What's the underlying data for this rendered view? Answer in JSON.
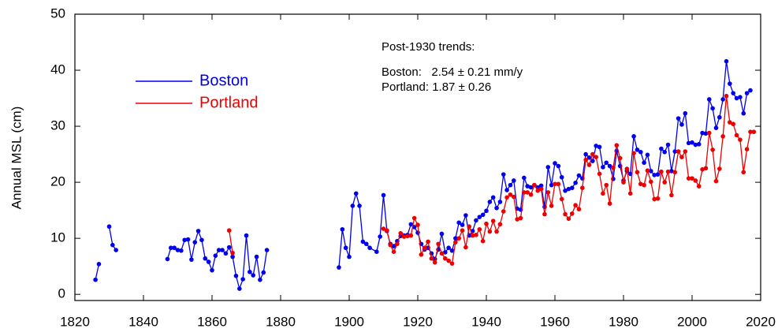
{
  "chart_data": {
    "type": "line",
    "ylabel": "Annual MSL (cm)",
    "annotations": [
      "Post-1930 trends:",
      "Boston:   2.54 ± 0.21 mm/y",
      "Portland: 1.87 ± 0.26"
    ],
    "xlim": [
      1820,
      2020
    ],
    "xticks": [
      1820,
      1840,
      1860,
      1880,
      1900,
      1920,
      1940,
      1960,
      1980,
      2000,
      2020
    ],
    "ylim": [
      -1.1,
      50
    ],
    "yticks": [
      0,
      10,
      20,
      30,
      40,
      50
    ],
    "legend": "upper left",
    "series": [
      {
        "name": "Boston",
        "color": "#0000ee",
        "x": [
          1826,
          1827,
          1828,
          1830,
          1831,
          1832,
          1833,
          1847,
          1848,
          1849,
          1850,
          1851,
          1852,
          1853,
          1854,
          1855,
          1856,
          1857,
          1858,
          1859,
          1860,
          1861,
          1862,
          1863,
          1864,
          1865,
          1866,
          1867,
          1868,
          1869,
          1870,
          1871,
          1872,
          1873,
          1874,
          1875,
          1876,
          1877,
          1897,
          1898,
          1899,
          1900,
          1901,
          1902,
          1903,
          1904,
          1905,
          1906,
          1908,
          1909,
          1910,
          1911,
          1912,
          1913,
          1914,
          1915,
          1916,
          1917,
          1918,
          1919,
          1920,
          1921,
          1922,
          1923,
          1924,
          1925,
          1926,
          1927,
          1928,
          1929,
          1930,
          1931,
          1932,
          1933,
          1934,
          1935,
          1936,
          1937,
          1938,
          1939,
          1940,
          1941,
          1942,
          1943,
          1944,
          1945,
          1946,
          1947,
          1948,
          1949,
          1950,
          1951,
          1952,
          1953,
          1954,
          1955,
          1956,
          1957,
          1958,
          1959,
          1960,
          1961,
          1962,
          1963,
          1964,
          1965,
          1966,
          1967,
          1968,
          1969,
          1970,
          1971,
          1972,
          1973,
          1974,
          1975,
          1976,
          1977,
          1978,
          1979,
          1980,
          1981,
          1982,
          1983,
          1984,
          1985,
          1986,
          1987,
          1988,
          1989,
          1990,
          1991,
          1992,
          1993,
          1994,
          1995,
          1996,
          1997,
          1998,
          1999,
          2000,
          2001,
          2002,
          2003,
          2004,
          2005,
          2006,
          2007,
          2008,
          2009,
          2010,
          2011,
          2012,
          2013,
          2014,
          2015,
          2016,
          2017
        ],
        "values": [
          2.6,
          5.4,
          null,
          12.1,
          8.8,
          7.9,
          null,
          6.3,
          8.3,
          8.3,
          7.9,
          7.8,
          9.7,
          9.8,
          6.2,
          9.3,
          11.3,
          9.7,
          6.4,
          5.8,
          4.3,
          6.9,
          7.9,
          7.9,
          7.3,
          8.4,
          6.7,
          3.3,
          1.0,
          2.7,
          10.5,
          4.0,
          3.4,
          6.7,
          2.6,
          3.9,
          7.9,
          null,
          4.8,
          11.6,
          8.3,
          6.7,
          15.8,
          18.0,
          15.8,
          9.4,
          9.0,
          8.3,
          7.6,
          10.3,
          17.7,
          11.3,
          9.0,
          8.6,
          9.5,
          10.4,
          10.5,
          10.6,
          12.5,
          12.0,
          11.0,
          9.0,
          8.0,
          8.3,
          7.3,
          6.3,
          8.0,
          10.8,
          7.5,
          8.3,
          7.8,
          10.0,
          12.8,
          12.4,
          14.1,
          10.5,
          11.3,
          13.2,
          13.8,
          14.2,
          14.9,
          16.5,
          17.3,
          15.4,
          16.5,
          21.4,
          18.6,
          19.5,
          20.3,
          15.3,
          15.1,
          20.8,
          19.3,
          19.1,
          19.5,
          19.1,
          19.4,
          15.6,
          22.7,
          19.5,
          23.4,
          22.9,
          20.9,
          18.5,
          18.8,
          19.0,
          19.9,
          21.2,
          20.7,
          25.0,
          24.4,
          23.8,
          26.5,
          26.3,
          22.7,
          23.5,
          22.9,
          20.6,
          25.6,
          22.9,
          20.3,
          22.0,
          21.5,
          28.2,
          25.8,
          25.4,
          23.5,
          24.9,
          22.0,
          21.3,
          21.4,
          26.0,
          25.4,
          26.7,
          22.0,
          25.5,
          31.4,
          30.3,
          32.3,
          27.0,
          27.1,
          26.7,
          26.8,
          28.8,
          28.7,
          34.8,
          33.2,
          29.7,
          31.6,
          34.8,
          41.6,
          37.6,
          35.9,
          35.0,
          35.2,
          32.3,
          35.9,
          36.4
        ]
      },
      {
        "name": "Portland",
        "color": "#ee0000",
        "x": [
          1865,
          1866,
          1867,
          1910,
          1911,
          1912,
          1913,
          1914,
          1915,
          1916,
          1917,
          1918,
          1919,
          1920,
          1921,
          1922,
          1923,
          1924,
          1925,
          1926,
          1927,
          1928,
          1929,
          1930,
          1931,
          1932,
          1933,
          1934,
          1935,
          1936,
          1937,
          1938,
          1939,
          1940,
          1941,
          1942,
          1943,
          1944,
          1945,
          1946,
          1947,
          1948,
          1949,
          1950,
          1951,
          1952,
          1953,
          1954,
          1955,
          1956,
          1957,
          1958,
          1959,
          1960,
          1961,
          1962,
          1963,
          1964,
          1965,
          1966,
          1967,
          1968,
          1969,
          1970,
          1971,
          1972,
          1973,
          1974,
          1975,
          1976,
          1977,
          1978,
          1979,
          1980,
          1981,
          1982,
          1983,
          1984,
          1985,
          1986,
          1987,
          1988,
          1989,
          1990,
          1991,
          1992,
          1993,
          1994,
          1995,
          1996,
          1997,
          1998,
          1999,
          2000,
          2001,
          2002,
          2003,
          2004,
          2005,
          2006,
          2007,
          2008,
          2009,
          2010,
          2011,
          2012,
          2013,
          2014,
          2015,
          2016,
          2017,
          2018
        ],
        "values": [
          11.4,
          7.4,
          null,
          11.7,
          11.4,
          8.8,
          7.6,
          9.0,
          10.9,
          10.3,
          10.4,
          10.5,
          13.6,
          12.4,
          7.1,
          8.3,
          9.4,
          6.4,
          5.7,
          9.0,
          7.3,
          6.4,
          6.0,
          5.5,
          9.3,
          10.0,
          11.4,
          8.4,
          12.1,
          10.5,
          10.6,
          11.6,
          9.5,
          12.6,
          11.2,
          13.1,
          11.2,
          12.5,
          14.8,
          17.3,
          17.8,
          17.4,
          13.4,
          13.6,
          18.2,
          18.2,
          17.8,
          19.5,
          18.5,
          18.8,
          14.3,
          18.2,
          15.8,
          19.7,
          19.7,
          17.0,
          14.3,
          13.5,
          14.4,
          15.9,
          15.2,
          19.0,
          24.0,
          23.1,
          25.0,
          24.5,
          21.5,
          18.0,
          19.5,
          16.2,
          22.6,
          26.6,
          24.3,
          20.0,
          22.4,
          18.0,
          25.2,
          21.8,
          19.7,
          19.5,
          22.1,
          20.1,
          17.0,
          17.1,
          21.9,
          20.0,
          21.9,
          17.7,
          21.8,
          25.5,
          24.5,
          25.5,
          20.7,
          20.7,
          20.3,
          19.3,
          22.3,
          22.5,
          28.8,
          25.8,
          20.2,
          22.4,
          28.2,
          35.4,
          30.7,
          30.4,
          28.4,
          27.6,
          21.8,
          25.9,
          29.0,
          29.0
        ]
      }
    ]
  }
}
